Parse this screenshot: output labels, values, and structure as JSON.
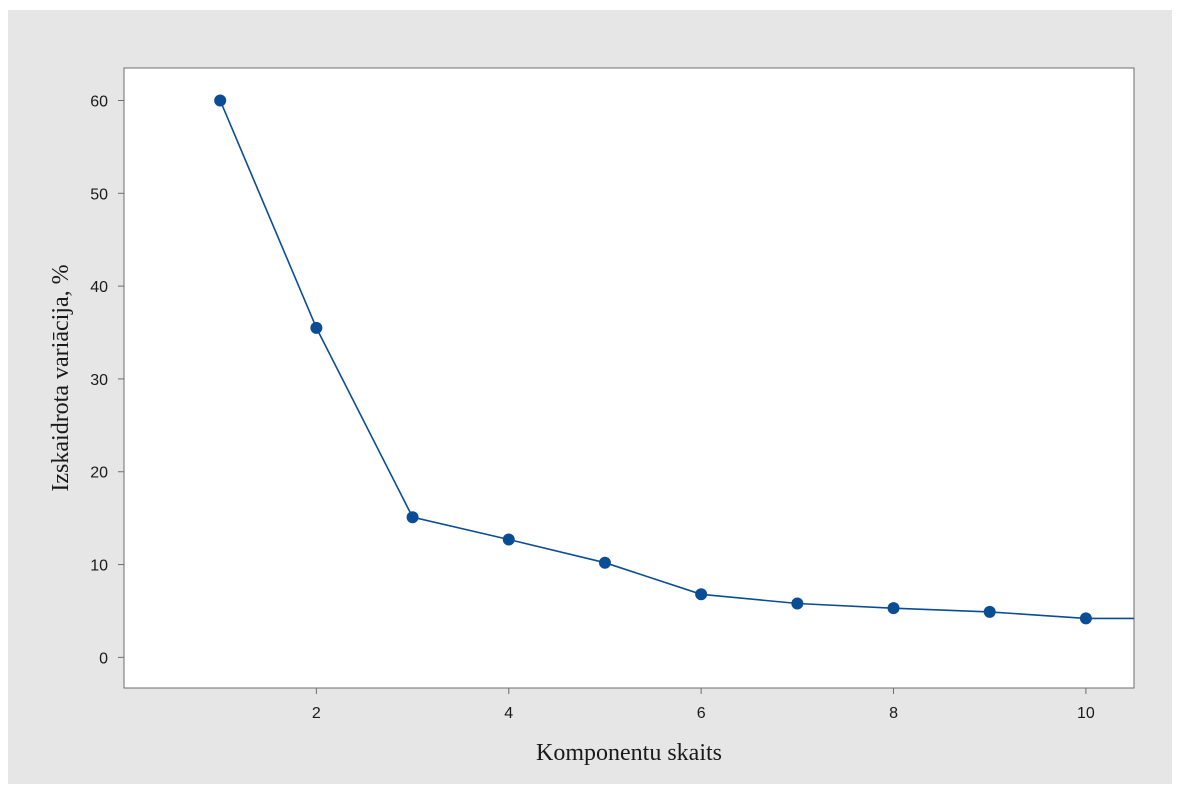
{
  "chart_data": {
    "type": "line",
    "title": "",
    "xlabel": "Komponentu skaits",
    "ylabel": "Izskaidrota variācija, %",
    "x": [
      1,
      2,
      3,
      4,
      5,
      6,
      7,
      8,
      9,
      10
    ],
    "series": [
      {
        "values": [
          60.0,
          35.5,
          15.1,
          12.7,
          10.2,
          6.8,
          5.8,
          5.3,
          4.9,
          4.2
        ]
      }
    ],
    "trailing_value_at_xmax": 4.2,
    "xlim": [
      0.0,
      10.5
    ],
    "ylim": [
      -3.3,
      63.5
    ],
    "xticks": [
      2,
      4,
      6,
      8,
      10
    ],
    "xtick_labels": [
      "2",
      "4",
      "6",
      "8",
      "10"
    ],
    "yticks": [
      0,
      10,
      20,
      30,
      40,
      50,
      60
    ],
    "ytick_labels": [
      "0",
      "10",
      "20",
      "30",
      "40",
      "50",
      "60"
    ],
    "grid": false,
    "legend": "none",
    "colors": {
      "series": "#0b4d94",
      "marker": "#0b4d94",
      "figure_background": "#e6e6e6",
      "plot_background": "#ffffff",
      "axis": "#6e6e6e"
    }
  }
}
